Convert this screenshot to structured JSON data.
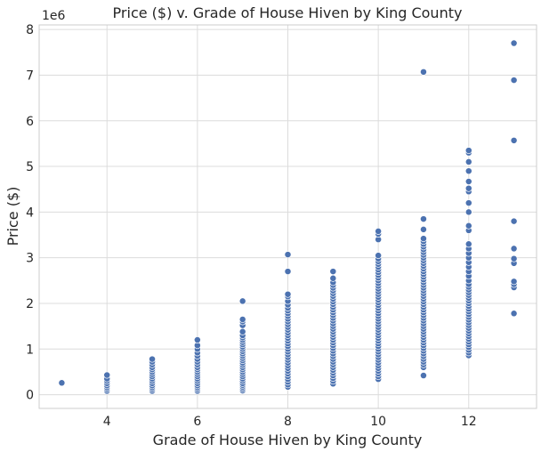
{
  "chart_data": {
    "type": "scatter",
    "title": "Price ($) v. Grade of House Hiven by King County",
    "xlabel": "Grade of House Hiven by King County",
    "ylabel": "Price ($)",
    "y_offset_label": "1e6",
    "xlim": [
      2.5,
      13.5
    ],
    "ylim": [
      -0.3,
      8.1
    ],
    "x_ticks": [
      4,
      6,
      8,
      10,
      12
    ],
    "y_ticks": [
      0,
      1,
      2,
      3,
      4,
      5,
      6,
      7,
      8
    ],
    "grid": true,
    "legend": "none",
    "point_color": "#4c72b0",
    "point_edge_color": "#ffffff",
    "points": [
      {
        "x": 3,
        "y": 0.26
      },
      {
        "x": 4,
        "y": 0.08
      },
      {
        "x": 4,
        "y": 0.12
      },
      {
        "x": 4,
        "y": 0.16
      },
      {
        "x": 4,
        "y": 0.2
      },
      {
        "x": 4,
        "y": 0.25
      },
      {
        "x": 4,
        "y": 0.3
      },
      {
        "x": 4,
        "y": 0.35
      },
      {
        "x": 4,
        "y": 0.43
      },
      {
        "x": 5,
        "y": 0.08
      },
      {
        "x": 5,
        "y": 0.12
      },
      {
        "x": 5,
        "y": 0.16
      },
      {
        "x": 5,
        "y": 0.2
      },
      {
        "x": 5,
        "y": 0.25
      },
      {
        "x": 5,
        "y": 0.3
      },
      {
        "x": 5,
        "y": 0.35
      },
      {
        "x": 5,
        "y": 0.4
      },
      {
        "x": 5,
        "y": 0.45
      },
      {
        "x": 5,
        "y": 0.5
      },
      {
        "x": 5,
        "y": 0.55
      },
      {
        "x": 5,
        "y": 0.6
      },
      {
        "x": 5,
        "y": 0.66
      },
      {
        "x": 5,
        "y": 0.72
      },
      {
        "x": 5,
        "y": 0.78
      },
      {
        "x": 6,
        "y": 0.08
      },
      {
        "x": 6,
        "y": 0.12
      },
      {
        "x": 6,
        "y": 0.16
      },
      {
        "x": 6,
        "y": 0.2
      },
      {
        "x": 6,
        "y": 0.25
      },
      {
        "x": 6,
        "y": 0.3
      },
      {
        "x": 6,
        "y": 0.35
      },
      {
        "x": 6,
        "y": 0.4
      },
      {
        "x": 6,
        "y": 0.45
      },
      {
        "x": 6,
        "y": 0.5
      },
      {
        "x": 6,
        "y": 0.55
      },
      {
        "x": 6,
        "y": 0.6
      },
      {
        "x": 6,
        "y": 0.66
      },
      {
        "x": 6,
        "y": 0.72
      },
      {
        "x": 6,
        "y": 0.78
      },
      {
        "x": 6,
        "y": 0.85
      },
      {
        "x": 6,
        "y": 0.92
      },
      {
        "x": 6,
        "y": 1.0
      },
      {
        "x": 6,
        "y": 1.08
      },
      {
        "x": 6,
        "y": 1.2
      },
      {
        "x": 7,
        "y": 0.09
      },
      {
        "x": 7,
        "y": 0.13
      },
      {
        "x": 7,
        "y": 0.17
      },
      {
        "x": 7,
        "y": 0.21
      },
      {
        "x": 7,
        "y": 0.25
      },
      {
        "x": 7,
        "y": 0.3
      },
      {
        "x": 7,
        "y": 0.35
      },
      {
        "x": 7,
        "y": 0.4
      },
      {
        "x": 7,
        "y": 0.45
      },
      {
        "x": 7,
        "y": 0.5
      },
      {
        "x": 7,
        "y": 0.55
      },
      {
        "x": 7,
        "y": 0.6
      },
      {
        "x": 7,
        "y": 0.65
      },
      {
        "x": 7,
        "y": 0.7
      },
      {
        "x": 7,
        "y": 0.75
      },
      {
        "x": 7,
        "y": 0.8
      },
      {
        "x": 7,
        "y": 0.85
      },
      {
        "x": 7,
        "y": 0.9
      },
      {
        "x": 7,
        "y": 0.95
      },
      {
        "x": 7,
        "y": 1.0
      },
      {
        "x": 7,
        "y": 1.05
      },
      {
        "x": 7,
        "y": 1.1
      },
      {
        "x": 7,
        "y": 1.15
      },
      {
        "x": 7,
        "y": 1.2
      },
      {
        "x": 7,
        "y": 1.25
      },
      {
        "x": 7,
        "y": 1.3
      },
      {
        "x": 7,
        "y": 1.38
      },
      {
        "x": 7,
        "y": 1.52
      },
      {
        "x": 7,
        "y": 1.6
      },
      {
        "x": 7,
        "y": 1.65
      },
      {
        "x": 7,
        "y": 2.05
      },
      {
        "x": 8,
        "y": 0.17
      },
      {
        "x": 8,
        "y": 0.22
      },
      {
        "x": 8,
        "y": 0.28
      },
      {
        "x": 8,
        "y": 0.34
      },
      {
        "x": 8,
        "y": 0.4
      },
      {
        "x": 8,
        "y": 0.46
      },
      {
        "x": 8,
        "y": 0.52
      },
      {
        "x": 8,
        "y": 0.58
      },
      {
        "x": 8,
        "y": 0.64
      },
      {
        "x": 8,
        "y": 0.7
      },
      {
        "x": 8,
        "y": 0.76
      },
      {
        "x": 8,
        "y": 0.82
      },
      {
        "x": 8,
        "y": 0.88
      },
      {
        "x": 8,
        "y": 0.94
      },
      {
        "x": 8,
        "y": 1.0
      },
      {
        "x": 8,
        "y": 1.06
      },
      {
        "x": 8,
        "y": 1.12
      },
      {
        "x": 8,
        "y": 1.18
      },
      {
        "x": 8,
        "y": 1.24
      },
      {
        "x": 8,
        "y": 1.3
      },
      {
        "x": 8,
        "y": 1.36
      },
      {
        "x": 8,
        "y": 1.42
      },
      {
        "x": 8,
        "y": 1.48
      },
      {
        "x": 8,
        "y": 1.54
      },
      {
        "x": 8,
        "y": 1.6
      },
      {
        "x": 8,
        "y": 1.66
      },
      {
        "x": 8,
        "y": 1.72
      },
      {
        "x": 8,
        "y": 1.78
      },
      {
        "x": 8,
        "y": 1.84
      },
      {
        "x": 8,
        "y": 1.9
      },
      {
        "x": 8,
        "y": 1.97
      },
      {
        "x": 8,
        "y": 2.05
      },
      {
        "x": 8,
        "y": 2.15
      },
      {
        "x": 8,
        "y": 2.2
      },
      {
        "x": 8,
        "y": 2.7
      },
      {
        "x": 8,
        "y": 3.07
      },
      {
        "x": 9,
        "y": 0.24
      },
      {
        "x": 9,
        "y": 0.3
      },
      {
        "x": 9,
        "y": 0.36
      },
      {
        "x": 9,
        "y": 0.42
      },
      {
        "x": 9,
        "y": 0.48
      },
      {
        "x": 9,
        "y": 0.54
      },
      {
        "x": 9,
        "y": 0.6
      },
      {
        "x": 9,
        "y": 0.66
      },
      {
        "x": 9,
        "y": 0.72
      },
      {
        "x": 9,
        "y": 0.78
      },
      {
        "x": 9,
        "y": 0.84
      },
      {
        "x": 9,
        "y": 0.9
      },
      {
        "x": 9,
        "y": 0.96
      },
      {
        "x": 9,
        "y": 1.02
      },
      {
        "x": 9,
        "y": 1.08
      },
      {
        "x": 9,
        "y": 1.14
      },
      {
        "x": 9,
        "y": 1.2
      },
      {
        "x": 9,
        "y": 1.26
      },
      {
        "x": 9,
        "y": 1.32
      },
      {
        "x": 9,
        "y": 1.38
      },
      {
        "x": 9,
        "y": 1.44
      },
      {
        "x": 9,
        "y": 1.5
      },
      {
        "x": 9,
        "y": 1.56
      },
      {
        "x": 9,
        "y": 1.62
      },
      {
        "x": 9,
        "y": 1.68
      },
      {
        "x": 9,
        "y": 1.74
      },
      {
        "x": 9,
        "y": 1.8
      },
      {
        "x": 9,
        "y": 1.86
      },
      {
        "x": 9,
        "y": 1.92
      },
      {
        "x": 9,
        "y": 1.98
      },
      {
        "x": 9,
        "y": 2.04
      },
      {
        "x": 9,
        "y": 2.1
      },
      {
        "x": 9,
        "y": 2.16
      },
      {
        "x": 9,
        "y": 2.22
      },
      {
        "x": 9,
        "y": 2.28
      },
      {
        "x": 9,
        "y": 2.34
      },
      {
        "x": 9,
        "y": 2.4
      },
      {
        "x": 9,
        "y": 2.46
      },
      {
        "x": 9,
        "y": 2.55
      },
      {
        "x": 9,
        "y": 2.7
      },
      {
        "x": 10,
        "y": 0.34
      },
      {
        "x": 10,
        "y": 0.4
      },
      {
        "x": 10,
        "y": 0.46
      },
      {
        "x": 10,
        "y": 0.52
      },
      {
        "x": 10,
        "y": 0.58
      },
      {
        "x": 10,
        "y": 0.64
      },
      {
        "x": 10,
        "y": 0.7
      },
      {
        "x": 10,
        "y": 0.76
      },
      {
        "x": 10,
        "y": 0.82
      },
      {
        "x": 10,
        "y": 0.88
      },
      {
        "x": 10,
        "y": 0.94
      },
      {
        "x": 10,
        "y": 1.0
      },
      {
        "x": 10,
        "y": 1.06
      },
      {
        "x": 10,
        "y": 1.12
      },
      {
        "x": 10,
        "y": 1.18
      },
      {
        "x": 10,
        "y": 1.24
      },
      {
        "x": 10,
        "y": 1.3
      },
      {
        "x": 10,
        "y": 1.36
      },
      {
        "x": 10,
        "y": 1.42
      },
      {
        "x": 10,
        "y": 1.48
      },
      {
        "x": 10,
        "y": 1.54
      },
      {
        "x": 10,
        "y": 1.6
      },
      {
        "x": 10,
        "y": 1.66
      },
      {
        "x": 10,
        "y": 1.72
      },
      {
        "x": 10,
        "y": 1.78
      },
      {
        "x": 10,
        "y": 1.84
      },
      {
        "x": 10,
        "y": 1.9
      },
      {
        "x": 10,
        "y": 1.96
      },
      {
        "x": 10,
        "y": 2.02
      },
      {
        "x": 10,
        "y": 2.08
      },
      {
        "x": 10,
        "y": 2.14
      },
      {
        "x": 10,
        "y": 2.2
      },
      {
        "x": 10,
        "y": 2.26
      },
      {
        "x": 10,
        "y": 2.32
      },
      {
        "x": 10,
        "y": 2.38
      },
      {
        "x": 10,
        "y": 2.44
      },
      {
        "x": 10,
        "y": 2.5
      },
      {
        "x": 10,
        "y": 2.56
      },
      {
        "x": 10,
        "y": 2.62
      },
      {
        "x": 10,
        "y": 2.68
      },
      {
        "x": 10,
        "y": 2.74
      },
      {
        "x": 10,
        "y": 2.8
      },
      {
        "x": 10,
        "y": 2.86
      },
      {
        "x": 10,
        "y": 2.92
      },
      {
        "x": 10,
        "y": 2.98
      },
      {
        "x": 10,
        "y": 3.05
      },
      {
        "x": 10,
        "y": 3.4
      },
      {
        "x": 10,
        "y": 3.52
      },
      {
        "x": 10,
        "y": 3.58
      },
      {
        "x": 11,
        "y": 0.42
      },
      {
        "x": 11,
        "y": 0.6
      },
      {
        "x": 11,
        "y": 0.66
      },
      {
        "x": 11,
        "y": 0.72
      },
      {
        "x": 11,
        "y": 0.78
      },
      {
        "x": 11,
        "y": 0.84
      },
      {
        "x": 11,
        "y": 0.9
      },
      {
        "x": 11,
        "y": 0.96
      },
      {
        "x": 11,
        "y": 1.02
      },
      {
        "x": 11,
        "y": 1.08
      },
      {
        "x": 11,
        "y": 1.14
      },
      {
        "x": 11,
        "y": 1.2
      },
      {
        "x": 11,
        "y": 1.26
      },
      {
        "x": 11,
        "y": 1.32
      },
      {
        "x": 11,
        "y": 1.38
      },
      {
        "x": 11,
        "y": 1.44
      },
      {
        "x": 11,
        "y": 1.5
      },
      {
        "x": 11,
        "y": 1.56
      },
      {
        "x": 11,
        "y": 1.62
      },
      {
        "x": 11,
        "y": 1.68
      },
      {
        "x": 11,
        "y": 1.74
      },
      {
        "x": 11,
        "y": 1.8
      },
      {
        "x": 11,
        "y": 1.86
      },
      {
        "x": 11,
        "y": 1.92
      },
      {
        "x": 11,
        "y": 1.98
      },
      {
        "x": 11,
        "y": 2.04
      },
      {
        "x": 11,
        "y": 2.1
      },
      {
        "x": 11,
        "y": 2.16
      },
      {
        "x": 11,
        "y": 2.22
      },
      {
        "x": 11,
        "y": 2.28
      },
      {
        "x": 11,
        "y": 2.34
      },
      {
        "x": 11,
        "y": 2.4
      },
      {
        "x": 11,
        "y": 2.46
      },
      {
        "x": 11,
        "y": 2.52
      },
      {
        "x": 11,
        "y": 2.58
      },
      {
        "x": 11,
        "y": 2.64
      },
      {
        "x": 11,
        "y": 2.7
      },
      {
        "x": 11,
        "y": 2.76
      },
      {
        "x": 11,
        "y": 2.82
      },
      {
        "x": 11,
        "y": 2.88
      },
      {
        "x": 11,
        "y": 2.94
      },
      {
        "x": 11,
        "y": 3.0
      },
      {
        "x": 11,
        "y": 3.06
      },
      {
        "x": 11,
        "y": 3.12
      },
      {
        "x": 11,
        "y": 3.18
      },
      {
        "x": 11,
        "y": 3.24
      },
      {
        "x": 11,
        "y": 3.3
      },
      {
        "x": 11,
        "y": 3.36
      },
      {
        "x": 11,
        "y": 3.42
      },
      {
        "x": 11,
        "y": 3.62
      },
      {
        "x": 11,
        "y": 3.85
      },
      {
        "x": 11,
        "y": 7.07
      },
      {
        "x": 12,
        "y": 0.86
      },
      {
        "x": 12,
        "y": 0.92
      },
      {
        "x": 12,
        "y": 0.98
      },
      {
        "x": 12,
        "y": 1.04
      },
      {
        "x": 12,
        "y": 1.1
      },
      {
        "x": 12,
        "y": 1.16
      },
      {
        "x": 12,
        "y": 1.22
      },
      {
        "x": 12,
        "y": 1.28
      },
      {
        "x": 12,
        "y": 1.34
      },
      {
        "x": 12,
        "y": 1.4
      },
      {
        "x": 12,
        "y": 1.46
      },
      {
        "x": 12,
        "y": 1.52
      },
      {
        "x": 12,
        "y": 1.58
      },
      {
        "x": 12,
        "y": 1.64
      },
      {
        "x": 12,
        "y": 1.7
      },
      {
        "x": 12,
        "y": 1.76
      },
      {
        "x": 12,
        "y": 1.82
      },
      {
        "x": 12,
        "y": 1.88
      },
      {
        "x": 12,
        "y": 1.94
      },
      {
        "x": 12,
        "y": 2.0
      },
      {
        "x": 12,
        "y": 2.06
      },
      {
        "x": 12,
        "y": 2.12
      },
      {
        "x": 12,
        "y": 2.18
      },
      {
        "x": 12,
        "y": 2.24
      },
      {
        "x": 12,
        "y": 2.3
      },
      {
        "x": 12,
        "y": 2.36
      },
      {
        "x": 12,
        "y": 2.42
      },
      {
        "x": 12,
        "y": 2.5
      },
      {
        "x": 12,
        "y": 2.6
      },
      {
        "x": 12,
        "y": 2.7
      },
      {
        "x": 12,
        "y": 2.8
      },
      {
        "x": 12,
        "y": 2.9
      },
      {
        "x": 12,
        "y": 3.0
      },
      {
        "x": 12,
        "y": 3.1
      },
      {
        "x": 12,
        "y": 3.2
      },
      {
        "x": 12,
        "y": 3.3
      },
      {
        "x": 12,
        "y": 3.6
      },
      {
        "x": 12,
        "y": 3.7
      },
      {
        "x": 12,
        "y": 4.0
      },
      {
        "x": 12,
        "y": 4.2
      },
      {
        "x": 12,
        "y": 4.45
      },
      {
        "x": 12,
        "y": 4.52
      },
      {
        "x": 12,
        "y": 4.67
      },
      {
        "x": 12,
        "y": 4.9
      },
      {
        "x": 12,
        "y": 5.1
      },
      {
        "x": 12,
        "y": 5.3
      },
      {
        "x": 12,
        "y": 5.35
      },
      {
        "x": 13,
        "y": 1.78
      },
      {
        "x": 13,
        "y": 2.35
      },
      {
        "x": 13,
        "y": 2.42
      },
      {
        "x": 13,
        "y": 2.48
      },
      {
        "x": 13,
        "y": 2.88
      },
      {
        "x": 13,
        "y": 2.98
      },
      {
        "x": 13,
        "y": 3.2
      },
      {
        "x": 13,
        "y": 3.8
      },
      {
        "x": 13,
        "y": 5.57
      },
      {
        "x": 13,
        "y": 6.89
      },
      {
        "x": 13,
        "y": 7.7
      }
    ]
  }
}
